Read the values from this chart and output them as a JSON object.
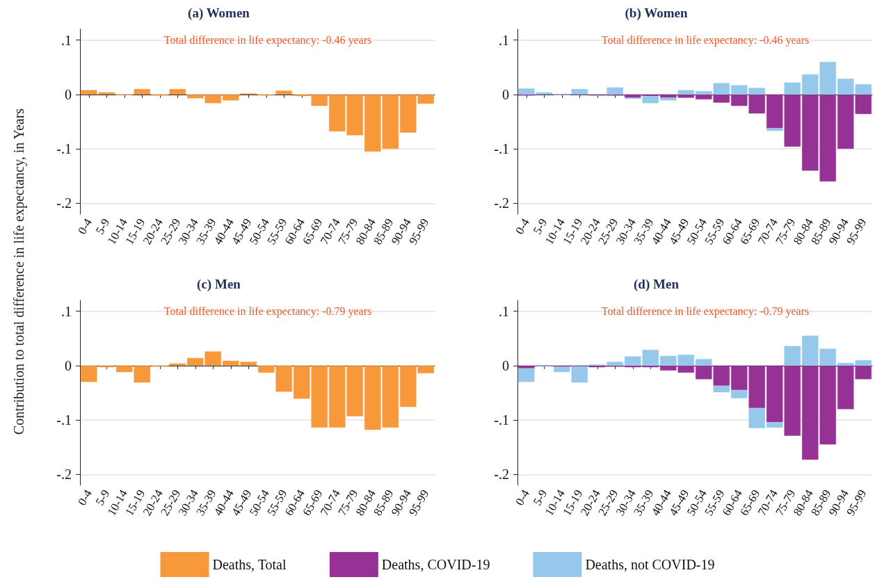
{
  "chart_data": [
    {
      "type": "bar",
      "title": "(a) Women",
      "subtitle": "Total difference in life expectancy: -0.46 years",
      "ylabel": "Contribution to total difference in life expectancy, in Years",
      "categories": [
        "0-4",
        "5-9",
        "10-14",
        "15-19",
        "20-24",
        "25-29",
        "30-34",
        "35-39",
        "40-44",
        "45-49",
        "50-54",
        "55-59",
        "60-64",
        "65-69",
        "70-74",
        "75-79",
        "80-84",
        "85-89",
        "90-94",
        "95-99"
      ],
      "series": [
        {
          "name": "Deaths, Total",
          "color": "#f7993a",
          "values": [
            0.008,
            0.004,
            -0.001,
            0.01,
            -0.002,
            0.01,
            -0.007,
            -0.016,
            -0.011,
            0.002,
            -0.002,
            0.007,
            -0.003,
            -0.021,
            -0.068,
            -0.075,
            -0.105,
            -0.1,
            -0.07,
            -0.017
          ]
        }
      ],
      "ylim": [
        -0.22,
        0.12
      ],
      "yticks": [
        {
          "value": 0.1,
          "label": ".1"
        },
        {
          "value": 0,
          "label": "0"
        },
        {
          "value": -0.1,
          "label": "-.1"
        },
        {
          "value": -0.2,
          "label": "-.2"
        }
      ],
      "grid": "y",
      "legend": "bottom"
    },
    {
      "type": "bar",
      "title": "(b) Women",
      "subtitle": "Total difference in life expectancy: -0.46 years",
      "stacked": true,
      "categories": [
        "0-4",
        "5-9",
        "10-14",
        "15-19",
        "20-24",
        "25-29",
        "30-34",
        "35-39",
        "40-44",
        "45-49",
        "50-54",
        "55-59",
        "60-64",
        "65-69",
        "70-74",
        "75-79",
        "80-84",
        "85-89",
        "90-94",
        "95-99"
      ],
      "series": [
        {
          "name": "Deaths, COVID-19",
          "color": "#963296",
          "values": [
            -0.002,
            0,
            0,
            0,
            -0.002,
            -0.002,
            -0.006,
            -0.003,
            -0.006,
            -0.006,
            -0.009,
            -0.015,
            -0.021,
            -0.035,
            -0.062,
            -0.096,
            -0.14,
            -0.16,
            -0.1,
            -0.036
          ]
        },
        {
          "name": "Deaths, not COVID-19",
          "color": "#95c8ea",
          "values": [
            0.011,
            0.004,
            -0.001,
            0.01,
            0,
            0.013,
            -0.002,
            -0.013,
            -0.005,
            0.008,
            0.006,
            0.021,
            0.017,
            0.012,
            -0.005,
            0.022,
            0.037,
            0.06,
            0.029,
            0.019
          ]
        }
      ],
      "ylim": [
        -0.22,
        0.12
      ],
      "yticks": [
        {
          "value": 0.1,
          "label": ".1"
        },
        {
          "value": 0,
          "label": "0"
        },
        {
          "value": -0.1,
          "label": "-.1"
        },
        {
          "value": -0.2,
          "label": "-.2"
        }
      ],
      "grid": "y",
      "legend": "bottom"
    },
    {
      "type": "bar",
      "title": "(c) Men",
      "subtitle": "Total difference in life expectancy: -0.79 years",
      "categories": [
        "0-4",
        "5-9",
        "10-14",
        "15-19",
        "20-24",
        "25-29",
        "30-34",
        "35-39",
        "40-44",
        "45-49",
        "50-54",
        "55-59",
        "60-64",
        "65-69",
        "70-74",
        "75-79",
        "80-84",
        "85-89",
        "90-94",
        "95-99"
      ],
      "series": [
        {
          "name": "Deaths, Total",
          "color": "#f7993a",
          "values": [
            -0.03,
            -0.003,
            -0.012,
            -0.031,
            -0.002,
            0.004,
            0.014,
            0.026,
            0.009,
            0.007,
            -0.013,
            -0.048,
            -0.061,
            -0.114,
            -0.114,
            -0.093,
            -0.118,
            -0.114,
            -0.076,
            -0.014
          ]
        }
      ],
      "ylim": [
        -0.22,
        0.12
      ],
      "yticks": [
        {
          "value": 0.1,
          "label": ".1"
        },
        {
          "value": 0,
          "label": "0"
        },
        {
          "value": -0.1,
          "label": "-.1"
        },
        {
          "value": -0.2,
          "label": "-.2"
        }
      ],
      "grid": "y",
      "legend": "bottom"
    },
    {
      "type": "bar",
      "title": "(d) Men",
      "subtitle": "Total difference in life expectancy: -0.79 years",
      "stacked": true,
      "categories": [
        "0-4",
        "5-9",
        "10-14",
        "15-19",
        "20-24",
        "25-29",
        "30-34",
        "35-39",
        "40-44",
        "45-49",
        "50-54",
        "55-59",
        "60-64",
        "65-69",
        "70-74",
        "75-79",
        "80-84",
        "85-89",
        "90-94",
        "95-99"
      ],
      "series": [
        {
          "name": "Deaths, COVID-19",
          "color": "#963296",
          "values": [
            -0.005,
            0,
            -0.002,
            -0.001,
            -0.003,
            -0.002,
            -0.003,
            -0.003,
            -0.009,
            -0.013,
            -0.025,
            -0.037,
            -0.045,
            -0.078,
            -0.104,
            -0.129,
            -0.173,
            -0.145,
            -0.08,
            -0.025
          ]
        },
        {
          "name": "Deaths, not COVID-19",
          "color": "#95c8ea",
          "values": [
            -0.025,
            -0.002,
            -0.01,
            -0.03,
            0.002,
            0.007,
            0.017,
            0.029,
            0.018,
            0.02,
            0.012,
            -0.012,
            -0.015,
            -0.037,
            -0.01,
            0.036,
            0.055,
            0.031,
            0.005,
            0.01
          ]
        }
      ],
      "ylim": [
        -0.22,
        0.12
      ],
      "yticks": [
        {
          "value": 0.1,
          "label": ".1"
        },
        {
          "value": 0,
          "label": "0"
        },
        {
          "value": -0.1,
          "label": "-.1"
        },
        {
          "value": -0.2,
          "label": "-.2"
        }
      ],
      "grid": "y",
      "legend": "bottom"
    }
  ]
}
